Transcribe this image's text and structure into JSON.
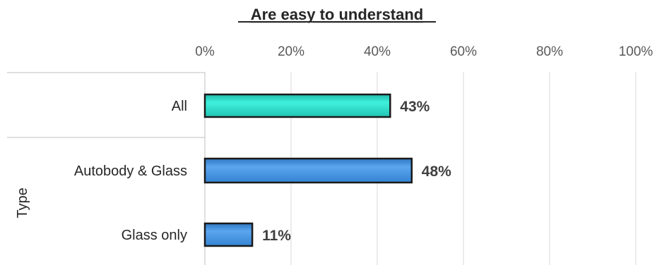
{
  "chart_data": {
    "type": "bar",
    "orientation": "horizontal",
    "title": "Are easy to understand",
    "categories": [
      "All",
      "Autobody & Glass",
      "Glass only"
    ],
    "values": [
      43,
      48,
      11
    ],
    "data_labels": [
      "43%",
      "48%",
      "11%"
    ],
    "bar_colors": [
      "#2ED5C4",
      "#3F8FDC",
      "#3F8FDC"
    ],
    "xlim": [
      0,
      100
    ],
    "x_ticks": [
      0,
      20,
      40,
      60,
      80,
      100
    ],
    "x_tick_labels": [
      "0%",
      "20%",
      "40%",
      "60%",
      "80%",
      "100%"
    ],
    "ylabel": "Type",
    "grid": true,
    "legend": "none"
  }
}
